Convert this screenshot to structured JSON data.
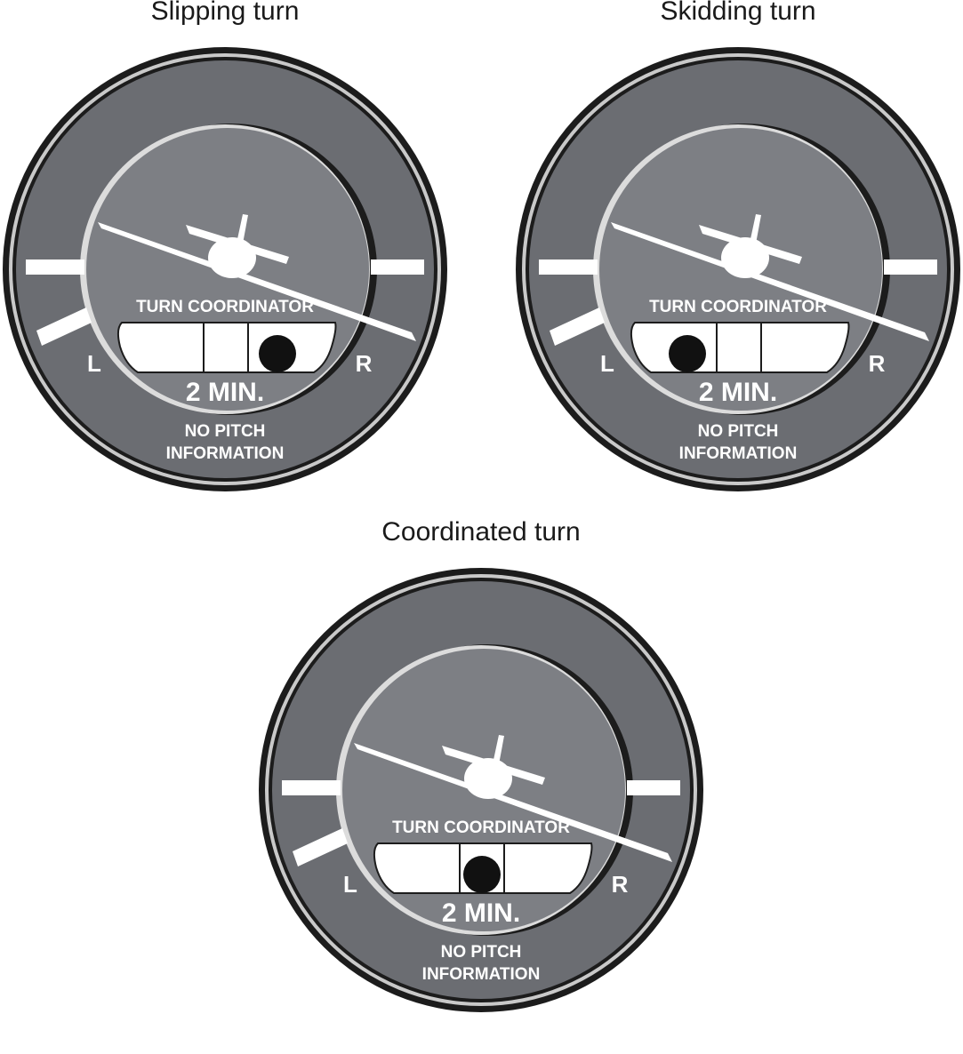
{
  "instruments": [
    {
      "id": "slipping",
      "caption": "Slipping turn",
      "label_top": "TURN COORDINATOR",
      "label_left": "L",
      "label_right": "R",
      "rate_label": "2 MIN.",
      "pitch_line1": "NO PITCH",
      "pitch_line2": "INFORMATION",
      "ball_position": "right"
    },
    {
      "id": "skidding",
      "caption": "Skidding turn",
      "label_top": "TURN COORDINATOR",
      "label_left": "L",
      "label_right": "R",
      "rate_label": "2 MIN.",
      "pitch_line1": "NO PITCH",
      "pitch_line2": "INFORMATION",
      "ball_position": "left"
    },
    {
      "id": "coordinated",
      "caption": "Coordinated turn",
      "label_top": "TURN COORDINATOR",
      "label_left": "L",
      "label_right": "R",
      "rate_label": "2 MIN.",
      "pitch_line1": "NO PITCH",
      "pitch_line2": "INFORMATION",
      "ball_position": "center"
    }
  ],
  "colors": {
    "bezel": "#6b6d72",
    "face": "#7d7f84",
    "rim": "#1c1c1c",
    "marks": "#ffffff",
    "ball": "#111111"
  }
}
